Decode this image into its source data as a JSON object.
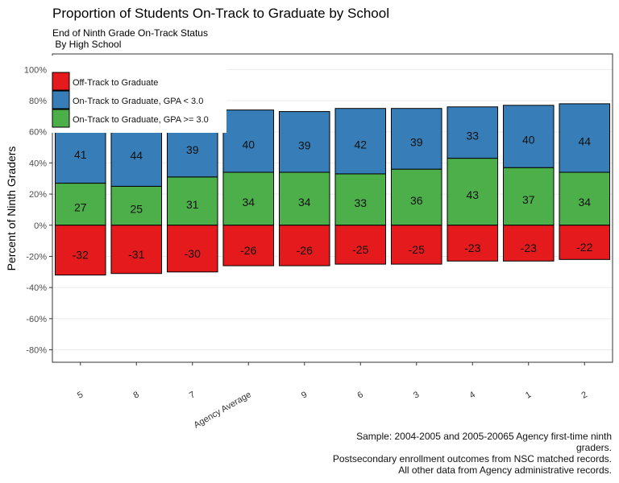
{
  "chart_data": {
    "type": "bar",
    "stacked": true,
    "title": "Proportion of Students On-Track to Graduate by School",
    "subtitle": [
      "End of Ninth Grade On-Track Status",
      " By High School"
    ],
    "y_label": "Percent of Ninth Graders",
    "categories": [
      "5",
      "8",
      "7",
      "Agency Average",
      "9",
      "6",
      "3",
      "4",
      "1",
      "2"
    ],
    "series": [
      {
        "name": "Off-Track to Graduate",
        "color": "#e41a1c",
        "values": [
          -32,
          -31,
          -30,
          -26,
          -26,
          -25,
          -25,
          -23,
          -23,
          -22
        ]
      },
      {
        "name": "On-Track to Graduate, GPA < 3.0",
        "color": "#377eb8",
        "values": [
          41,
          44,
          39,
          40,
          39,
          42,
          39,
          33,
          40,
          44
        ]
      },
      {
        "name": "On-Track to Graduate, GPA >= 3.0",
        "color": "#4daf4a",
        "values": [
          27,
          25,
          31,
          34,
          34,
          33,
          36,
          43,
          37,
          34
        ]
      }
    ],
    "ylim": [
      -88,
      110
    ],
    "yticks": [
      {
        "value": -80,
        "label": "-80%"
      },
      {
        "value": -60,
        "label": "-60%"
      },
      {
        "value": -40,
        "label": "-40%"
      },
      {
        "value": -20,
        "label": "-20%"
      },
      {
        "value": 0,
        "label": "0%"
      },
      {
        "value": 20,
        "label": "20%"
      },
      {
        "value": 40,
        "label": "40%"
      },
      {
        "value": 60,
        "label": "60%"
      },
      {
        "value": 80,
        "label": "80%"
      },
      {
        "value": 100,
        "label": "100%"
      }
    ],
    "grid": true,
    "legend": "top-left",
    "caption": [
      "Sample: 2004-2005 and 2005-20065 Agency first-time ninth",
      "graders.",
      "Postsecondary enrollment outcomes from NSC matched records.",
      "All other data from Agency administrative records."
    ]
  }
}
